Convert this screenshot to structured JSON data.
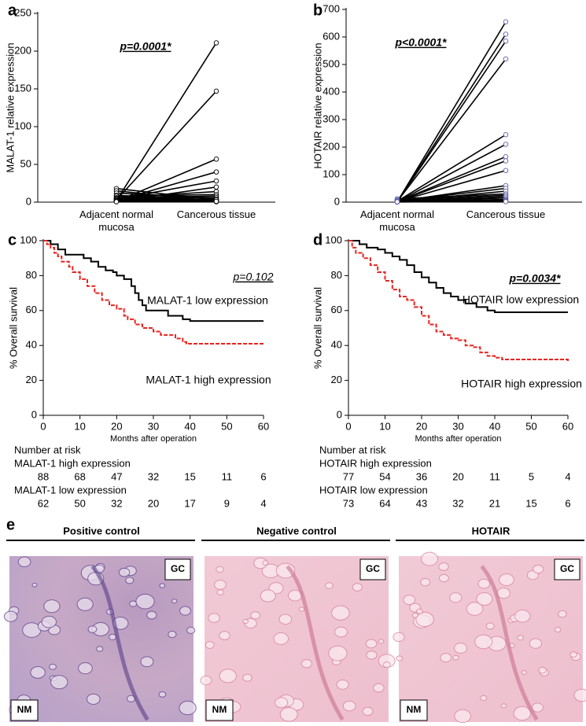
{
  "chart_data": [
    {
      "type": "paired",
      "panel": "a",
      "annotation": "p=0.0001*",
      "ylabel": "MALAT-1 relative expression",
      "categories": [
        "Adjacent normal mucosa",
        "Cancerous tissue"
      ],
      "color": "#000000",
      "ylim": [
        0,
        250
      ],
      "yticks": [
        0,
        50,
        100,
        150,
        200,
        250
      ],
      "pairs": [
        [
          2,
          211
        ],
        [
          3,
          147
        ],
        [
          1,
          57
        ],
        [
          2,
          40
        ],
        [
          4,
          28
        ],
        [
          1,
          20
        ],
        [
          6,
          14
        ],
        [
          18,
          3
        ],
        [
          15,
          1
        ],
        [
          12,
          5
        ],
        [
          9,
          2
        ],
        [
          8,
          10
        ],
        [
          6,
          8
        ],
        [
          5,
          6
        ],
        [
          4,
          4
        ],
        [
          3,
          2
        ],
        [
          2,
          1
        ],
        [
          1,
          3
        ],
        [
          1,
          0.5
        ],
        [
          0.5,
          1
        ]
      ]
    },
    {
      "type": "paired",
      "panel": "b",
      "annotation": "p<0.0001*",
      "ylabel": "HOTAIR relative expression",
      "categories": [
        "Adjacent normal mucosa",
        "Cancerous tissue"
      ],
      "color": "#000000",
      "marker_color": "#5b5ea6",
      "ylim": [
        0,
        700
      ],
      "yticks": [
        0,
        100,
        200,
        300,
        400,
        500,
        600,
        700
      ],
      "pairs": [
        [
          1,
          655
        ],
        [
          2,
          610
        ],
        [
          1,
          585
        ],
        [
          2,
          520
        ],
        [
          3,
          245
        ],
        [
          1,
          210
        ],
        [
          2,
          165
        ],
        [
          1,
          150
        ],
        [
          2,
          115
        ],
        [
          3,
          60
        ],
        [
          4,
          50
        ],
        [
          2,
          40
        ],
        [
          12,
          30
        ],
        [
          8,
          25
        ],
        [
          5,
          20
        ],
        [
          3,
          15
        ],
        [
          2,
          10
        ],
        [
          1,
          8
        ],
        [
          1,
          5
        ],
        [
          0.5,
          3
        ],
        [
          1,
          2
        ]
      ]
    },
    {
      "type": "survival",
      "panel": "c",
      "annotation": "p=0.102",
      "xlabel": "Months after operation",
      "ylabel": "% Overall survival",
      "xlim": [
        0,
        60
      ],
      "xticks": [
        0,
        10,
        20,
        30,
        40,
        50,
        60
      ],
      "ylim": [
        0,
        100
      ],
      "yticks": [
        0,
        20,
        40,
        60,
        80,
        100
      ],
      "series": [
        {
          "name": "MALAT-1 low expression",
          "color": "#000000",
          "dash": false,
          "x": [
            0,
            2,
            4,
            6,
            11,
            13,
            15,
            17,
            19,
            20,
            22,
            24,
            25,
            26,
            27,
            28,
            34,
            38,
            40,
            60
          ],
          "values": [
            100,
            98,
            95,
            92,
            90,
            88,
            85,
            83,
            82,
            80,
            78,
            74,
            70,
            66,
            63,
            60,
            57,
            55,
            54,
            54
          ]
        },
        {
          "name": "MALAT-1 high expression",
          "color": "#e8231f",
          "dash": true,
          "x": [
            0,
            1,
            2,
            3,
            4,
            5,
            7,
            8,
            10,
            12,
            14,
            16,
            18,
            20,
            22,
            23,
            25,
            27,
            30,
            32,
            36,
            38,
            39,
            60
          ],
          "values": [
            100,
            98,
            96,
            93,
            91,
            88,
            85,
            82,
            78,
            74,
            70,
            66,
            63,
            61,
            57,
            55,
            52,
            50,
            48,
            46,
            44,
            42,
            41,
            41
          ]
        }
      ],
      "risk_table": {
        "title": "Number at risk",
        "rows": [
          {
            "label": "MALAT-1 high  expression",
            "counts": [
              88,
              68,
              47,
              32,
              15,
              11,
              6
            ]
          },
          {
            "label": "MALAT-1 low expression",
            "counts": [
              62,
              50,
              32,
              20,
              17,
              9,
              4
            ]
          }
        ]
      }
    },
    {
      "type": "survival",
      "panel": "d",
      "annotation": "p=0.0034*",
      "xlabel": "Months after operation",
      "ylabel": "% Overall survival",
      "xlim": [
        0,
        60
      ],
      "xticks": [
        0,
        10,
        20,
        30,
        40,
        50,
        60
      ],
      "ylim": [
        0,
        100
      ],
      "yticks": [
        0,
        20,
        40,
        60,
        80,
        100
      ],
      "series": [
        {
          "name": "HOTAIR low expression",
          "color": "#000000",
          "dash": false,
          "x": [
            0,
            3,
            5,
            8,
            10,
            12,
            14,
            16,
            18,
            20,
            22,
            24,
            26,
            28,
            30,
            32,
            35,
            38,
            40,
            60
          ],
          "values": [
            100,
            98,
            96,
            95,
            93,
            91,
            89,
            86,
            82,
            79,
            76,
            73,
            70,
            68,
            66,
            64,
            62,
            60,
            59,
            59
          ]
        },
        {
          "name": "HOTAIR high expression",
          "color": "#e8231f",
          "dash": true,
          "x": [
            0,
            1,
            2,
            4,
            6,
            8,
            10,
            12,
            14,
            16,
            18,
            20,
            22,
            24,
            26,
            28,
            30,
            32,
            34,
            36,
            38,
            40,
            42,
            60
          ],
          "values": [
            100,
            96,
            93,
            90,
            86,
            82,
            77,
            72,
            68,
            66,
            62,
            57,
            52,
            48,
            46,
            44,
            43,
            40,
            39,
            36,
            34,
            33,
            32,
            31
          ]
        }
      ],
      "risk_table": {
        "title": "Number at risk",
        "rows": [
          {
            "label": "HOTAIR high  expression",
            "counts": [
              77,
              54,
              36,
              20,
              11,
              5,
              4
            ]
          },
          {
            "label": "HOTAIR low expression",
            "counts": [
              73,
              64,
              43,
              32,
              21,
              15,
              6
            ]
          }
        ]
      }
    }
  ],
  "histology": {
    "panel": "e",
    "images": [
      {
        "title": "Positive control",
        "labels": [
          "GC",
          "NM"
        ]
      },
      {
        "title": "Negative control",
        "labels": [
          "GC",
          "NM"
        ]
      },
      {
        "title": "HOTAIR",
        "labels": [
          "GC",
          "NM"
        ]
      }
    ]
  }
}
